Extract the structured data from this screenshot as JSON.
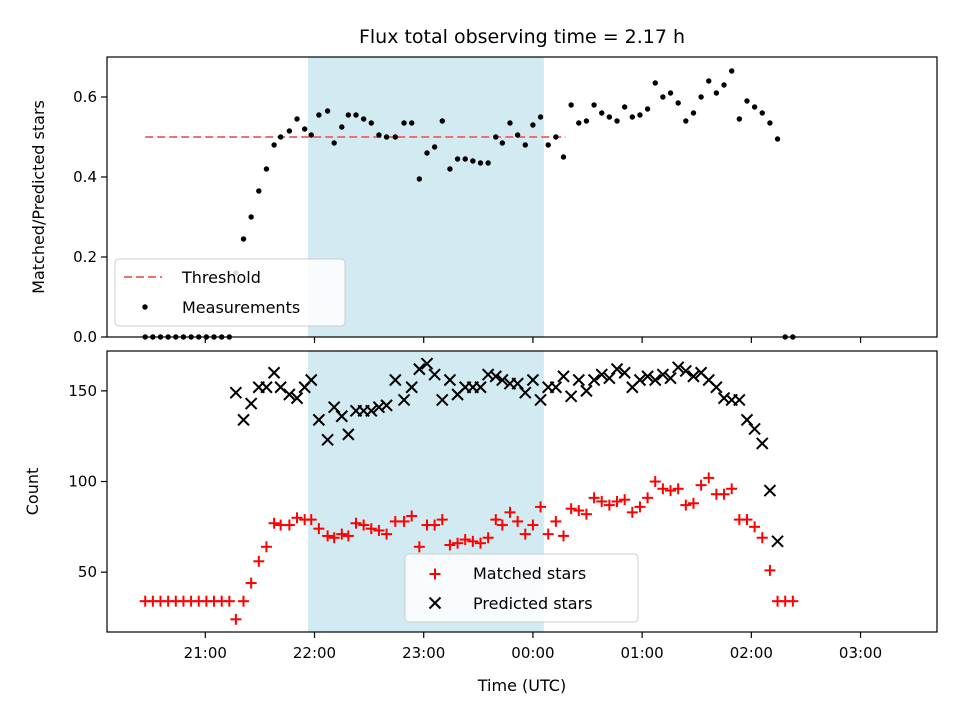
{
  "figure": {
    "title": "Flux total observing time = 2.17 h",
    "colors": {
      "highlight": "#add8e6",
      "threshold": "#f07070",
      "measurements": "#000000",
      "matched": "#ff0000",
      "predicted": "#000000"
    }
  },
  "chart_data": [
    {
      "type": "scatter",
      "ylabel": "Matched/Predicted stars",
      "xlabel": "",
      "x_unit": "hours since 21:00 UTC (axis shows clock time)",
      "xlim": [
        -0.9,
        6.7
      ],
      "ylim": [
        0,
        0.7
      ],
      "yticks": [
        0,
        0.2,
        0.4,
        0.6
      ],
      "ytick_labels": [
        "0.0",
        "0.2",
        "0.4",
        "0.6"
      ],
      "highlight_span": [
        0.94,
        3.1
      ],
      "threshold": {
        "name": "Threshold",
        "value": 0.5,
        "x_range": [
          -0.55,
          3.3
        ]
      },
      "legend": {
        "location": "lower left",
        "entries": [
          "Threshold",
          "Measurements"
        ]
      },
      "series": [
        {
          "name": "Measurements",
          "marker": "dot",
          "points": [
            [
              -0.55,
              0
            ],
            [
              -0.48,
              0
            ],
            [
              -0.41,
              0
            ],
            [
              -0.34,
              0
            ],
            [
              -0.27,
              0
            ],
            [
              -0.2,
              0
            ],
            [
              -0.13,
              0
            ],
            [
              -0.06,
              0
            ],
            [
              0.01,
              0
            ],
            [
              0.08,
              0
            ],
            [
              0.15,
              0
            ],
            [
              0.22,
              0
            ],
            [
              0.28,
              0.16
            ],
            [
              0.35,
              0.245
            ],
            [
              0.42,
              0.3
            ],
            [
              0.49,
              0.365
            ],
            [
              0.56,
              0.42
            ],
            [
              0.63,
              0.48
            ],
            [
              0.69,
              0.5
            ],
            [
              0.77,
              0.515
            ],
            [
              0.84,
              0.545
            ],
            [
              0.91,
              0.52
            ],
            [
              0.97,
              0.505
            ],
            [
              1.04,
              0.555
            ],
            [
              1.12,
              0.565
            ],
            [
              1.18,
              0.485
            ],
            [
              1.25,
              0.525
            ],
            [
              1.31,
              0.555
            ],
            [
              1.38,
              0.555
            ],
            [
              1.45,
              0.545
            ],
            [
              1.52,
              0.535
            ],
            [
              1.59,
              0.505
            ],
            [
              1.66,
              0.5
            ],
            [
              1.74,
              0.5
            ],
            [
              1.82,
              0.535
            ],
            [
              1.89,
              0.535
            ],
            [
              1.96,
              0.395
            ],
            [
              2.03,
              0.46
            ],
            [
              2.1,
              0.475
            ],
            [
              2.17,
              0.54
            ],
            [
              2.24,
              0.42
            ],
            [
              2.31,
              0.445
            ],
            [
              2.38,
              0.445
            ],
            [
              2.45,
              0.44
            ],
            [
              2.52,
              0.435
            ],
            [
              2.59,
              0.435
            ],
            [
              2.66,
              0.5
            ],
            [
              2.72,
              0.485
            ],
            [
              2.79,
              0.535
            ],
            [
              2.86,
              0.505
            ],
            [
              2.93,
              0.48
            ],
            [
              3.0,
              0.53
            ],
            [
              3.07,
              0.55
            ],
            [
              3.14,
              0.48
            ],
            [
              3.21,
              0.5
            ],
            [
              3.28,
              0.45
            ],
            [
              3.35,
              0.58
            ],
            [
              3.42,
              0.535
            ],
            [
              3.49,
              0.54
            ],
            [
              3.56,
              0.58
            ],
            [
              3.63,
              0.56
            ],
            [
              3.7,
              0.55
            ],
            [
              3.77,
              0.54
            ],
            [
              3.84,
              0.575
            ],
            [
              3.91,
              0.55
            ],
            [
              3.98,
              0.555
            ],
            [
              4.05,
              0.57
            ],
            [
              4.12,
              0.635
            ],
            [
              4.19,
              0.6
            ],
            [
              4.26,
              0.61
            ],
            [
              4.33,
              0.585
            ],
            [
              4.4,
              0.54
            ],
            [
              4.47,
              0.56
            ],
            [
              4.54,
              0.6
            ],
            [
              4.61,
              0.64
            ],
            [
              4.68,
              0.61
            ],
            [
              4.75,
              0.63
            ],
            [
              4.82,
              0.665
            ],
            [
              4.89,
              0.545
            ],
            [
              4.96,
              0.59
            ],
            [
              5.03,
              0.575
            ],
            [
              5.1,
              0.56
            ],
            [
              5.17,
              0.535
            ],
            [
              5.24,
              0.495
            ],
            [
              5.31,
              0
            ],
            [
              5.38,
              0
            ]
          ]
        }
      ]
    },
    {
      "type": "scatter",
      "ylabel": "Count",
      "xlabel": "Time (UTC)",
      "x_unit": "hours since 21:00 UTC (axis shows clock time)",
      "xlim": [
        -0.9,
        6.7
      ],
      "ylim": [
        17,
        172
      ],
      "xticks": [
        0,
        1,
        2,
        3,
        4,
        5,
        6
      ],
      "xtick_labels": [
        "21:00",
        "22:00",
        "23:00",
        "00:00",
        "01:00",
        "02:00",
        "03:00"
      ],
      "yticks": [
        50,
        100,
        150
      ],
      "ytick_labels": [
        "50",
        "100",
        "150"
      ],
      "highlight_span": [
        0.94,
        3.1
      ],
      "legend": {
        "location": "lower center",
        "entries": [
          "Matched stars",
          "Predicted stars"
        ]
      },
      "series": [
        {
          "name": "Matched stars",
          "marker": "plus",
          "points": [
            [
              -0.55,
              34
            ],
            [
              -0.48,
              34
            ],
            [
              -0.41,
              34
            ],
            [
              -0.34,
              34
            ],
            [
              -0.27,
              34
            ],
            [
              -0.2,
              34
            ],
            [
              -0.13,
              34
            ],
            [
              -0.06,
              34
            ],
            [
              0.01,
              34
            ],
            [
              0.08,
              34
            ],
            [
              0.15,
              34
            ],
            [
              0.22,
              34
            ],
            [
              0.28,
              24
            ],
            [
              0.35,
              34
            ],
            [
              0.42,
              44
            ],
            [
              0.49,
              56
            ],
            [
              0.56,
              64
            ],
            [
              0.63,
              77
            ],
            [
              0.69,
              76
            ],
            [
              0.77,
              76
            ],
            [
              0.84,
              80
            ],
            [
              0.91,
              79
            ],
            [
              0.97,
              79
            ],
            [
              1.04,
              74
            ],
            [
              1.12,
              70
            ],
            [
              1.18,
              69
            ],
            [
              1.25,
              71
            ],
            [
              1.31,
              70
            ],
            [
              1.38,
              77
            ],
            [
              1.45,
              76
            ],
            [
              1.52,
              74
            ],
            [
              1.59,
              73
            ],
            [
              1.66,
              71
            ],
            [
              1.74,
              78
            ],
            [
              1.82,
              78
            ],
            [
              1.89,
              81
            ],
            [
              1.96,
              64
            ],
            [
              2.03,
              76
            ],
            [
              2.1,
              76
            ],
            [
              2.17,
              79
            ],
            [
              2.24,
              65
            ],
            [
              2.31,
              66
            ],
            [
              2.38,
              68
            ],
            [
              2.45,
              67
            ],
            [
              2.52,
              66
            ],
            [
              2.59,
              69
            ],
            [
              2.66,
              79
            ],
            [
              2.72,
              76
            ],
            [
              2.79,
              83
            ],
            [
              2.86,
              78
            ],
            [
              2.93,
              71
            ],
            [
              3.0,
              76
            ],
            [
              3.07,
              86
            ],
            [
              3.14,
              71
            ],
            [
              3.21,
              78
            ],
            [
              3.28,
              70
            ],
            [
              3.35,
              85
            ],
            [
              3.42,
              84
            ],
            [
              3.49,
              82
            ],
            [
              3.56,
              91
            ],
            [
              3.63,
              89
            ],
            [
              3.7,
              87
            ],
            [
              3.77,
              89
            ],
            [
              3.84,
              90
            ],
            [
              3.91,
              83
            ],
            [
              3.98,
              86
            ],
            [
              4.05,
              91
            ],
            [
              4.12,
              100
            ],
            [
              4.19,
              96
            ],
            [
              4.26,
              95
            ],
            [
              4.33,
              96
            ],
            [
              4.4,
              87
            ],
            [
              4.47,
              88
            ],
            [
              4.54,
              98
            ],
            [
              4.61,
              102
            ],
            [
              4.68,
              93
            ],
            [
              4.75,
              93
            ],
            [
              4.82,
              96
            ],
            [
              4.89,
              79
            ],
            [
              4.96,
              79
            ],
            [
              5.03,
              75
            ],
            [
              5.1,
              69
            ],
            [
              5.17,
              51
            ],
            [
              5.24,
              34
            ],
            [
              5.31,
              34
            ],
            [
              5.38,
              34
            ]
          ]
        },
        {
          "name": "Predicted stars",
          "marker": "x",
          "points": [
            [
              0.28,
              149
            ],
            [
              0.35,
              134
            ],
            [
              0.42,
              143
            ],
            [
              0.49,
              152
            ],
            [
              0.56,
              152
            ],
            [
              0.63,
              160
            ],
            [
              0.69,
              152
            ],
            [
              0.77,
              148
            ],
            [
              0.84,
              146
            ],
            [
              0.91,
              152
            ],
            [
              0.97,
              156
            ],
            [
              1.04,
              134
            ],
            [
              1.12,
              123
            ],
            [
              1.18,
              141
            ],
            [
              1.25,
              136
            ],
            [
              1.31,
              126
            ],
            [
              1.38,
              139
            ],
            [
              1.45,
              139
            ],
            [
              1.52,
              139
            ],
            [
              1.59,
              141
            ],
            [
              1.66,
              142
            ],
            [
              1.74,
              156
            ],
            [
              1.82,
              145
            ],
            [
              1.89,
              152
            ],
            [
              1.96,
              162
            ],
            [
              2.03,
              165
            ],
            [
              2.1,
              159
            ],
            [
              2.17,
              145
            ],
            [
              2.24,
              156
            ],
            [
              2.31,
              148
            ],
            [
              2.38,
              152
            ],
            [
              2.45,
              152
            ],
            [
              2.52,
              152
            ],
            [
              2.59,
              159
            ],
            [
              2.66,
              158
            ],
            [
              2.72,
              156
            ],
            [
              2.79,
              154
            ],
            [
              2.86,
              154
            ],
            [
              2.93,
              149
            ],
            [
              3.0,
              156
            ],
            [
              3.07,
              145
            ],
            [
              3.14,
              152
            ],
            [
              3.21,
              152
            ],
            [
              3.28,
              158
            ],
            [
              3.35,
              147
            ],
            [
              3.42,
              156
            ],
            [
              3.49,
              150
            ],
            [
              3.56,
              156
            ],
            [
              3.63,
              159
            ],
            [
              3.7,
              157
            ],
            [
              3.77,
              162
            ],
            [
              3.84,
              160
            ],
            [
              3.91,
              152
            ],
            [
              3.98,
              156
            ],
            [
              4.05,
              158
            ],
            [
              4.12,
              156
            ],
            [
              4.19,
              159
            ],
            [
              4.26,
              157
            ],
            [
              4.33,
              163
            ],
            [
              4.4,
              161
            ],
            [
              4.47,
              158
            ],
            [
              4.54,
              160
            ],
            [
              4.61,
              156
            ],
            [
              4.68,
              152
            ],
            [
              4.75,
              146
            ],
            [
              4.82,
              145
            ],
            [
              4.89,
              145
            ],
            [
              4.96,
              134
            ],
            [
              5.03,
              129
            ],
            [
              5.1,
              121
            ],
            [
              5.17,
              95
            ],
            [
              5.24,
              67
            ]
          ]
        }
      ]
    }
  ]
}
